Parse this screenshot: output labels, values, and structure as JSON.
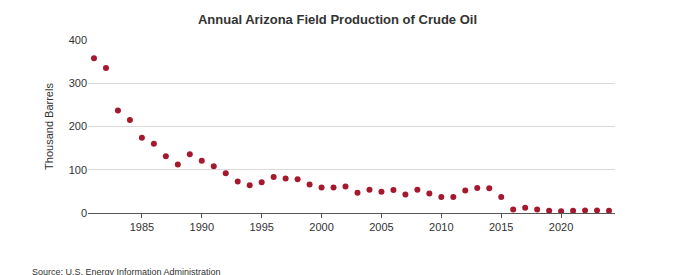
{
  "chart_data": {
    "type": "scatter",
    "title": "Annual Arizona Field Production of Crude Oil",
    "y_label": "Thousand Barrels",
    "source": "Source: U.S. Energy Information Administration",
    "x": [
      1981,
      1982,
      1983,
      1984,
      1985,
      1986,
      1987,
      1988,
      1989,
      1990,
      1991,
      1992,
      1993,
      1994,
      1995,
      1996,
      1997,
      1998,
      1999,
      2000,
      2001,
      2002,
      2003,
      2004,
      2005,
      2006,
      2007,
      2008,
      2009,
      2010,
      2011,
      2012,
      2013,
      2014,
      2015,
      2016,
      2017,
      2018,
      2019,
      2020,
      2021,
      2022,
      2023,
      2024
    ],
    "values": [
      358,
      335,
      237,
      215,
      174,
      160,
      131,
      112,
      136,
      121,
      108,
      92,
      73,
      64,
      71,
      83,
      80,
      78,
      66,
      59,
      59,
      61,
      47,
      54,
      49,
      53,
      43,
      54,
      45,
      37,
      37,
      52,
      58,
      57,
      37,
      8,
      12,
      8,
      5,
      4,
      5,
      6,
      6,
      5
    ],
    "color": "#a5192e",
    "marker": "circle",
    "xlim": [
      1980.5,
      2024.5
    ],
    "xticks": [
      1985,
      1990,
      1995,
      2000,
      2005,
      2010,
      2015,
      2020
    ],
    "ylim": [
      0,
      400
    ],
    "yticks": [
      0,
      100,
      200,
      300,
      400
    ],
    "grid": true
  }
}
